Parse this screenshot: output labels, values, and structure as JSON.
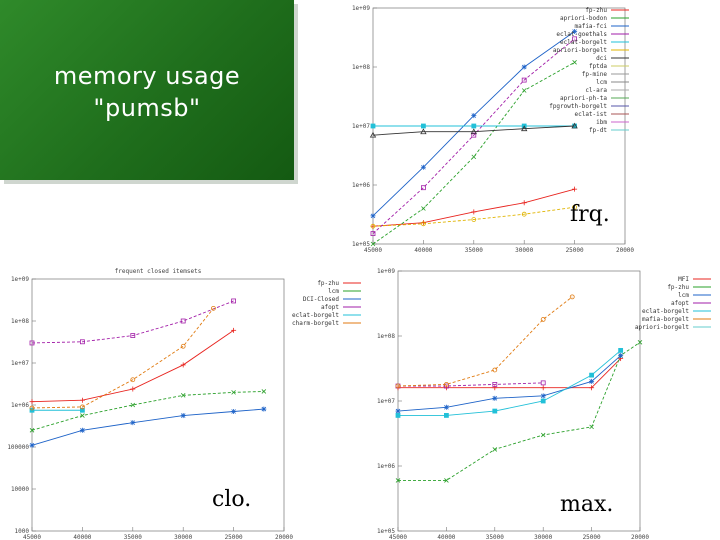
{
  "slide": {
    "title_line1": "memory usage",
    "title_line2": "\"pumsb\""
  },
  "colors": {
    "title_bg": "#1f6e1c",
    "title_text": "#ffffff"
  },
  "captions": {
    "frq": "frq.",
    "clo": "clo.",
    "max": "max."
  },
  "chart_data": [
    {
      "id": "frq",
      "type": "line",
      "title": "",
      "xlabel": "",
      "ylabel": "",
      "log_y": true,
      "xlim": [
        45000,
        20000
      ],
      "ylim": [
        100000,
        1000000000
      ],
      "x_ticks": [
        "45000",
        "40000",
        "35000",
        "30000",
        "25000",
        "20000"
      ],
      "y_ticks": [
        "1e+05",
        "1e+06",
        "1e+07",
        "1e+08",
        "1e+09"
      ],
      "grid": false,
      "legend_position": "top-right",
      "series": [
        {
          "name": "fp-zhu",
          "color": "#e8241f",
          "x": [
            45000,
            40000,
            35000,
            30000,
            25000
          ],
          "y": [
            200000,
            230000,
            350000,
            500000,
            850000
          ]
        },
        {
          "name": "apriori-bodon",
          "color": "#2aa02a",
          "x": [
            45000,
            40000,
            35000,
            30000,
            25000
          ],
          "y": [
            100000,
            400000,
            3000000,
            40000000,
            120000000
          ]
        },
        {
          "name": "mafia-fci",
          "color": "#1e63c8",
          "x": [
            45000,
            40000,
            35000,
            30000,
            25000
          ],
          "y": [
            300000,
            2000000,
            15000000,
            100000000,
            400000000
          ]
        },
        {
          "name": "eclat-goethals",
          "color": "#a21ea8",
          "x": [
            45000,
            40000,
            35000,
            30000,
            25000
          ],
          "y": [
            150000,
            900000,
            7000000,
            60000000,
            300000000
          ]
        },
        {
          "name": "eclat-borgelt",
          "color": "#22c0d8",
          "x": [
            45000,
            40000,
            35000,
            30000,
            25000
          ],
          "y": [
            10000000,
            10000000,
            10000000,
            10000000,
            10000000
          ]
        },
        {
          "name": "apriori-borgelt",
          "color": "#e0b400",
          "x": [
            45000,
            40000,
            35000,
            30000,
            25000
          ],
          "y": [
            200000,
            220000,
            260000,
            320000,
            420000
          ]
        },
        {
          "name": "dci",
          "color": "#333333",
          "x": [
            45000,
            40000,
            35000,
            30000,
            25000
          ],
          "y": [
            7000000,
            8000000,
            8000000,
            9000000,
            10000000
          ]
        }
      ],
      "legend": [
        "fp-zhu",
        "apriori-bodon",
        "mafia-fci",
        "eclat-goethals",
        "eclat-borgelt",
        "apriori-borgelt",
        "dci",
        "fptda",
        "fp-mine",
        "lcm",
        "cl-ara",
        "apriori-ph-ta",
        "fpgrowth-borgelt",
        "eclat-ist",
        "ibm",
        "fp-dt"
      ]
    },
    {
      "id": "clo",
      "type": "line",
      "title": "frequent closed itemsets",
      "xlabel": "",
      "ylabel": "",
      "log_y": true,
      "xlim": [
        45000,
        20000
      ],
      "ylim": [
        1000,
        1000000000
      ],
      "x_ticks": [
        "45000",
        "40000",
        "35000",
        "30000",
        "25000",
        "20000"
      ],
      "y_ticks": [
        "1000",
        "10000",
        "100000",
        "1e+06",
        "1e+07",
        "1e+08",
        "1e+09"
      ],
      "grid": false,
      "legend_position": "top-right",
      "series": [
        {
          "name": "fp-zhu",
          "color": "#e8241f",
          "x": [
            45000,
            40000,
            35000,
            30000,
            25000
          ],
          "y": [
            1200000,
            1300000,
            2400000,
            9000000,
            60000000
          ]
        },
        {
          "name": "lcm",
          "color": "#2aa02a",
          "x": [
            45000,
            40000,
            35000,
            30000,
            25000,
            22000
          ],
          "y": [
            250000,
            560000,
            1000000,
            1700000,
            2000000,
            2100000
          ]
        },
        {
          "name": "DCI-Closed",
          "color": "#1e63c8",
          "x": [
            45000,
            40000,
            35000,
            30000,
            25000,
            22000
          ],
          "y": [
            110000,
            250000,
            380000,
            560000,
            700000,
            800000
          ]
        },
        {
          "name": "afopt",
          "color": "#a21ea8",
          "x": [
            45000,
            40000,
            35000,
            30000,
            25000
          ],
          "y": [
            30000000,
            32000000,
            45000000,
            100000000,
            300000000
          ]
        },
        {
          "name": "eclat-borgelt",
          "color": "#22c0d8",
          "x": [
            45000,
            40000
          ],
          "y": [
            750000,
            750000
          ]
        },
        {
          "name": "charm-borgelt",
          "color": "#e07a10",
          "x": [
            45000,
            40000,
            35000,
            30000,
            27000
          ],
          "y": [
            850000,
            900000,
            4000000,
            25000000,
            200000000
          ]
        }
      ],
      "legend": [
        "fp-zhu",
        "lcm",
        "DCI-Closed",
        "afopt",
        "eclat-borgelt",
        "charm-borgelt"
      ]
    },
    {
      "id": "max",
      "type": "line",
      "title": "",
      "xlabel": "",
      "ylabel": "",
      "log_y": true,
      "xlim": [
        45000,
        20000
      ],
      "ylim": [
        100000,
        1000000000
      ],
      "x_ticks": [
        "45000",
        "40000",
        "35000",
        "30000",
        "25000",
        "20000"
      ],
      "y_ticks": [
        "1e+05",
        "1e+06",
        "1e+07",
        "1e+08",
        "1e+09"
      ],
      "grid": false,
      "legend_position": "top-right",
      "series": [
        {
          "name": "MFI",
          "color": "#e8241f",
          "x": [
            45000,
            40000,
            35000,
            30000,
            25000,
            22000
          ],
          "y": [
            16000000,
            16000000,
            16000000,
            16000000,
            16000000,
            45000000
          ]
        },
        {
          "name": "fp-zhu",
          "color": "#2aa02a",
          "x": [
            45000,
            40000,
            35000,
            30000,
            25000,
            22000,
            20000
          ],
          "y": [
            600000,
            600000,
            1800000,
            3000000,
            4000000,
            50000000,
            80000000
          ]
        },
        {
          "name": "lcm",
          "color": "#1e63c8",
          "x": [
            45000,
            40000,
            35000,
            30000,
            25000,
            22000
          ],
          "y": [
            7000000,
            8000000,
            11000000,
            12000000,
            20000000,
            50000000
          ]
        },
        {
          "name": "afopt",
          "color": "#a21ea8",
          "x": [
            45000,
            40000,
            35000,
            30000
          ],
          "y": [
            17000000,
            17000000,
            18000000,
            19000000
          ]
        },
        {
          "name": "eclat-borgelt",
          "color": "#22c0d8",
          "x": [
            45000,
            40000,
            35000,
            30000,
            25000,
            22000
          ],
          "y": [
            6000000,
            6000000,
            7000000,
            10000000,
            25000000,
            60000000
          ]
        },
        {
          "name": "apriori-borgelt",
          "color": "#e07a10",
          "x": [
            45000,
            40000,
            35000,
            30000,
            27000
          ],
          "y": [
            17000000,
            18000000,
            30000000,
            180000000,
            400000000
          ]
        }
      ],
      "legend": [
        "MFI",
        "fp-zhu",
        "lcm",
        "afopt",
        "eclat-borgelt",
        "mafia-borgelt",
        "apriori-borgelt"
      ]
    }
  ]
}
